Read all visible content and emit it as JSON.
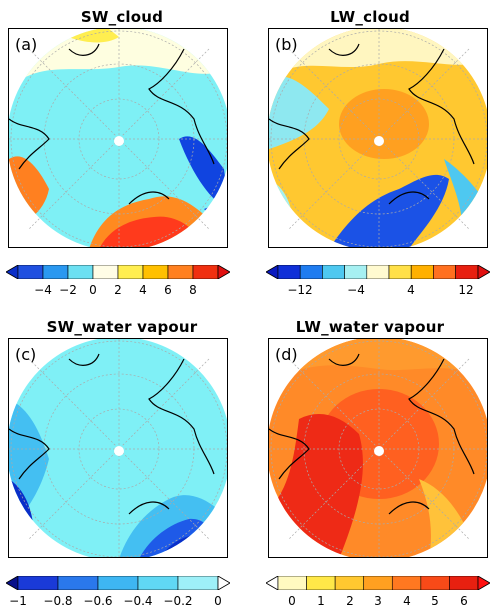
{
  "panels": [
    {
      "id": "a",
      "title": "SW_cloud",
      "label": "(a)",
      "colorbar": {
        "ticks": [
          "−4",
          "−2",
          "0",
          "2",
          "4",
          "6",
          "8"
        ],
        "colors": [
          "#2050e0",
          "#2a98f0",
          "#6ce0f2",
          "#fffde6",
          "#ffee50",
          "#ffc000",
          "#ff8020",
          "#f03010"
        ],
        "left_arrow": "#0a2ec8",
        "right_arrow": "#e01010"
      },
      "regions": {
        "ocean": "#7ef0f5",
        "north_band": "#fefee0",
        "hotspot": "#ff3a1c",
        "hotspot_mid": "#ff8a20",
        "cold": "#1044e0"
      }
    },
    {
      "id": "b",
      "title": "LW_cloud",
      "label": "(b)",
      "colorbar": {
        "ticks": [
          "−12",
          "−4",
          "4",
          "12"
        ],
        "colors": [
          "#1030d8",
          "#1f7cf0",
          "#4ec8f0",
          "#a6f0f2",
          "#fffad0",
          "#ffe048",
          "#ffb000",
          "#ff7020",
          "#e82010"
        ],
        "left_arrow": "#0a1ac0",
        "right_arrow": "#e01010"
      },
      "regions": {
        "ocean": "#ffc830",
        "center": "#ffa020",
        "north_band": "#fff6c0",
        "cold": "#1b52e6",
        "light": "#8ee8f0"
      }
    },
    {
      "id": "c",
      "title": "SW_water vapour",
      "label": "(c)",
      "colorbar": {
        "ticks": [
          "−1",
          "−0.8",
          "−0.6",
          "−0.4",
          "−0.2",
          "0"
        ],
        "colors": [
          "#1a3ad8",
          "#2a78ec",
          "#3eb6f2",
          "#60d8f4",
          "#9ef0f8"
        ],
        "left_arrow": "#08108a",
        "right_arrow": "#ffffff"
      },
      "regions": {
        "ocean": "#7ff0f6",
        "mid": "#44bff2",
        "deep": "#1e5ae8",
        "darkest": "#0a2ec8"
      }
    },
    {
      "id": "d",
      "title": "LW_water vapour",
      "label": "(d)",
      "colorbar": {
        "ticks": [
          "0",
          "1",
          "2",
          "3",
          "4",
          "5",
          "6"
        ],
        "colors": [
          "#fffac0",
          "#ffe848",
          "#ffc830",
          "#ffa020",
          "#ff7820",
          "#f84a18",
          "#e82010"
        ],
        "left_arrow": "#ffffff",
        "right_arrow": "#ff1010"
      },
      "regions": {
        "ocean": "#ff8a28",
        "inner": "#ff6020",
        "hot": "#ee2a16",
        "light": "#ffc23a"
      }
    }
  ]
}
